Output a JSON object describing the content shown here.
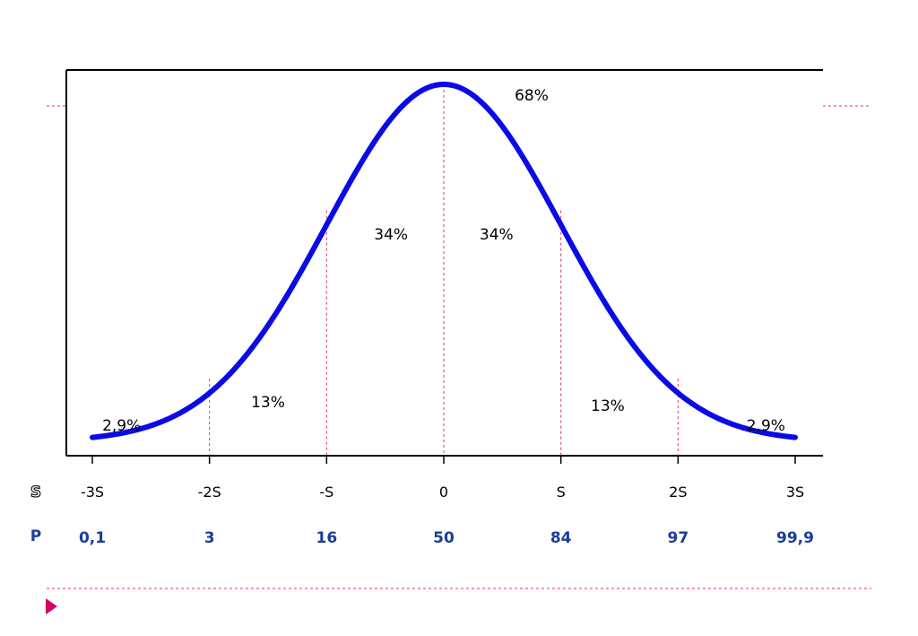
{
  "chart_data": {
    "type": "area",
    "title": "",
    "xlabel": "",
    "ylabel": "",
    "x_range": [
      -3,
      3
    ],
    "curve": "normal-distribution",
    "x_ticks": [
      -3,
      -2,
      -1,
      0,
      1,
      2,
      3
    ],
    "s_row_label": "S",
    "s_labels": [
      "-3S",
      "-2S",
      "-S",
      "0",
      "S",
      "2S",
      "3S"
    ],
    "p_row_label": "P",
    "p_labels": [
      "0,1",
      "3",
      "16",
      "50",
      "84",
      "97",
      "99,9"
    ],
    "region_labels": [
      {
        "text": "2,9%",
        "x": -2.75,
        "y": 0.045
      },
      {
        "text": "13%",
        "x": -1.5,
        "y": 0.11
      },
      {
        "text": "34%",
        "x": -0.45,
        "y": 0.58
      },
      {
        "text": "34%",
        "x": 0.45,
        "y": 0.58
      },
      {
        "text": "68%",
        "x": 0.75,
        "y": 0.97
      },
      {
        "text": "13%",
        "x": 1.4,
        "y": 0.1
      },
      {
        "text": "2,9%",
        "x": 2.75,
        "y": 0.045
      }
    ],
    "grid": false,
    "legend": "none"
  },
  "colors": {
    "curve": "#0a0ae6",
    "guide": "#e0306a",
    "p_text": "#1a3d9a",
    "axis": "#000000",
    "bullet": "#d6006b"
  },
  "decor": {
    "bullet_icon": "triangle-right-icon"
  }
}
